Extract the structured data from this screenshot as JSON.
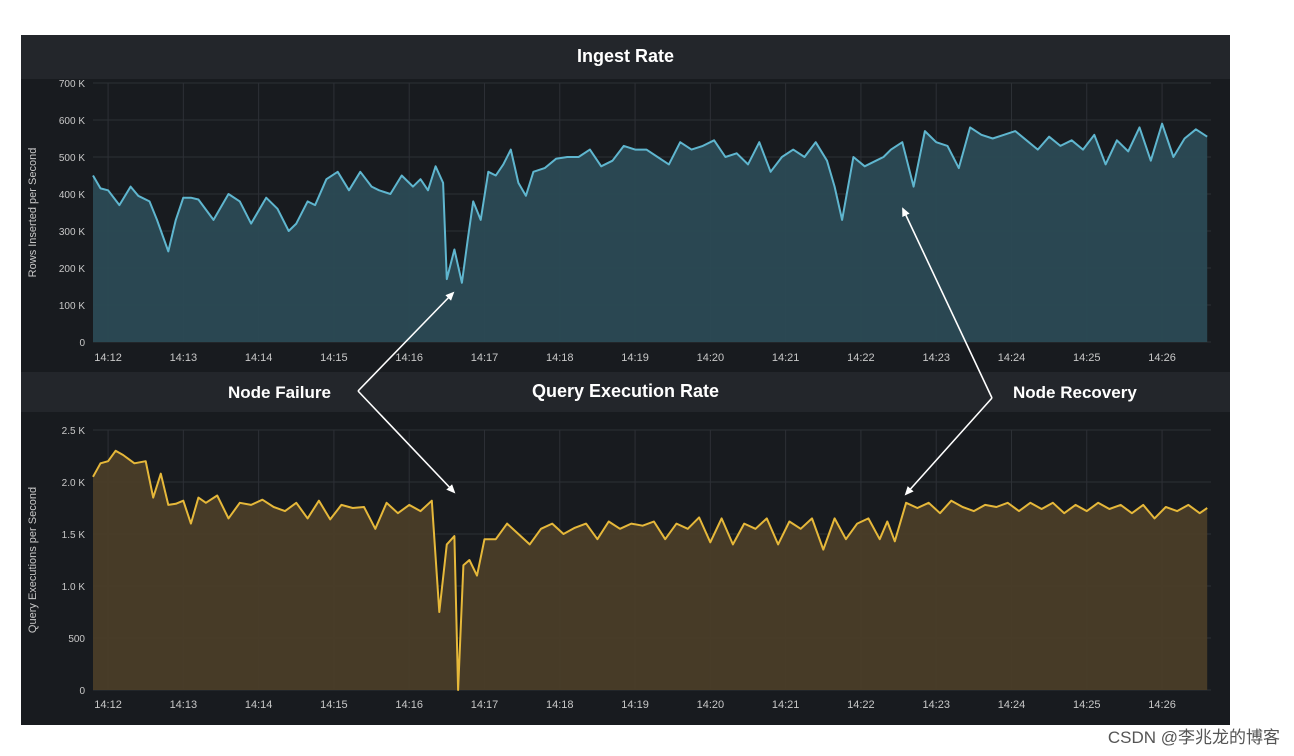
{
  "chart_data": [
    {
      "type": "area",
      "title": "Ingest Rate",
      "xlabel": "",
      "ylabel": "Rows Inserted per Second",
      "ylim": [
        0,
        700000
      ],
      "y_ticks": [
        0,
        100000,
        200000,
        300000,
        400000,
        500000,
        600000,
        700000
      ],
      "y_tick_labels": [
        "0",
        "100 K",
        "200 K",
        "300 K",
        "400 K",
        "500 K",
        "600 K",
        "700 K"
      ],
      "xlim": [
        11.8,
        26.65
      ],
      "x_ticks": [
        12,
        13,
        14,
        15,
        16,
        17,
        18,
        19,
        20,
        21,
        22,
        23,
        24,
        25,
        26
      ],
      "x_tick_labels": [
        "14:12",
        "14:13",
        "14:14",
        "14:15",
        "14:16",
        "14:17",
        "14:18",
        "14:19",
        "14:20",
        "14:21",
        "14:22",
        "14:23",
        "14:24",
        "14:25",
        "14:26"
      ],
      "line_color": "#5fb6cf",
      "fill_color": "#2b4a55",
      "x": [
        11.8,
        11.9,
        12.0,
        12.15,
        12.3,
        12.4,
        12.55,
        12.65,
        12.8,
        12.9,
        13.0,
        13.1,
        13.2,
        13.4,
        13.6,
        13.75,
        13.9,
        14.1,
        14.25,
        14.4,
        14.5,
        14.65,
        14.75,
        14.9,
        15.05,
        15.2,
        15.35,
        15.5,
        15.6,
        15.75,
        15.9,
        16.05,
        16.15,
        16.25,
        16.35,
        16.45,
        16.5,
        16.6,
        16.7,
        16.78,
        16.85,
        16.95,
        17.05,
        17.15,
        17.25,
        17.35,
        17.45,
        17.55,
        17.65,
        17.8,
        17.95,
        18.1,
        18.25,
        18.4,
        18.55,
        18.7,
        18.85,
        19.0,
        19.15,
        19.3,
        19.45,
        19.6,
        19.75,
        19.9,
        20.05,
        20.2,
        20.35,
        20.5,
        20.65,
        20.8,
        20.95,
        21.1,
        21.25,
        21.4,
        21.55,
        21.65,
        21.75,
        21.9,
        22.05,
        22.2,
        22.3,
        22.4,
        22.55,
        22.7,
        22.85,
        23.0,
        23.15,
        23.3,
        23.45,
        23.6,
        23.75,
        23.9,
        24.05,
        24.2,
        24.35,
        24.5,
        24.65,
        24.8,
        24.95,
        25.1,
        25.25,
        25.4,
        25.55,
        25.7,
        25.85,
        26.0,
        26.15,
        26.3,
        26.45,
        26.6
      ],
      "values": [
        450000,
        415000,
        410000,
        370000,
        420000,
        395000,
        380000,
        330000,
        245000,
        330000,
        390000,
        390000,
        385000,
        330000,
        400000,
        380000,
        320000,
        390000,
        360000,
        300000,
        320000,
        380000,
        370000,
        440000,
        460000,
        410000,
        460000,
        420000,
        410000,
        400000,
        450000,
        420000,
        440000,
        410000,
        475000,
        430000,
        170000,
        250000,
        160000,
        280000,
        380000,
        330000,
        460000,
        450000,
        480000,
        520000,
        430000,
        395000,
        460000,
        470000,
        495000,
        500000,
        500000,
        520000,
        475000,
        490000,
        530000,
        520000,
        520000,
        500000,
        480000,
        540000,
        520000,
        530000,
        545000,
        500000,
        510000,
        480000,
        540000,
        460000,
        500000,
        520000,
        500000,
        540000,
        490000,
        420000,
        330000,
        500000,
        475000,
        490000,
        500000,
        520000,
        540000,
        420000,
        570000,
        540000,
        530000,
        470000,
        580000,
        560000,
        550000,
        560000,
        570000,
        545000,
        520000,
        555000,
        530000,
        545000,
        520000,
        560000,
        480000,
        545000,
        515000,
        580000,
        490000,
        590000,
        500000,
        550000,
        575000,
        555000
      ]
    },
    {
      "type": "area",
      "title": "Query Execution Rate",
      "xlabel": "",
      "ylabel": "Query Executions per Second",
      "ylim": [
        0,
        2500
      ],
      "y_ticks": [
        0,
        500,
        1000,
        1500,
        2000,
        2500
      ],
      "y_tick_labels": [
        "0",
        "500",
        "1.0 K",
        "1.5 K",
        "2.0 K",
        "2.5 K"
      ],
      "xlim": [
        11.8,
        26.65
      ],
      "x_ticks": [
        12,
        13,
        14,
        15,
        16,
        17,
        18,
        19,
        20,
        21,
        22,
        23,
        24,
        25,
        26
      ],
      "x_tick_labels": [
        "14:12",
        "14:13",
        "14:14",
        "14:15",
        "14:16",
        "14:17",
        "14:18",
        "14:19",
        "14:20",
        "14:21",
        "14:22",
        "14:23",
        "14:24",
        "14:25",
        "14:26"
      ],
      "line_color": "#e6b83a",
      "fill_color": "#4a3d28",
      "x": [
        11.8,
        11.9,
        12.0,
        12.1,
        12.2,
        12.35,
        12.5,
        12.6,
        12.7,
        12.8,
        12.9,
        13.0,
        13.1,
        13.2,
        13.3,
        13.45,
        13.6,
        13.75,
        13.9,
        14.05,
        14.2,
        14.35,
        14.5,
        14.65,
        14.8,
        14.95,
        15.1,
        15.25,
        15.4,
        15.55,
        15.7,
        15.85,
        16.0,
        16.15,
        16.3,
        16.4,
        16.5,
        16.6,
        16.65,
        16.72,
        16.8,
        16.9,
        17.0,
        17.15,
        17.3,
        17.45,
        17.6,
        17.75,
        17.9,
        18.05,
        18.2,
        18.35,
        18.5,
        18.65,
        18.8,
        18.95,
        19.1,
        19.25,
        19.4,
        19.55,
        19.7,
        19.85,
        20.0,
        20.15,
        20.3,
        20.45,
        20.6,
        20.75,
        20.9,
        21.05,
        21.2,
        21.35,
        21.5,
        21.65,
        21.8,
        21.95,
        22.1,
        22.25,
        22.35,
        22.45,
        22.6,
        22.75,
        22.9,
        23.05,
        23.2,
        23.35,
        23.5,
        23.65,
        23.8,
        23.95,
        24.1,
        24.25,
        24.4,
        24.55,
        24.7,
        24.85,
        25.0,
        25.15,
        25.3,
        25.45,
        25.6,
        25.75,
        25.9,
        26.05,
        26.2,
        26.35,
        26.5,
        26.6
      ],
      "values": [
        2050,
        2180,
        2200,
        2300,
        2260,
        2180,
        2200,
        1850,
        2080,
        1780,
        1790,
        1820,
        1600,
        1850,
        1800,
        1870,
        1650,
        1800,
        1780,
        1830,
        1760,
        1720,
        1800,
        1650,
        1820,
        1640,
        1780,
        1750,
        1760,
        1550,
        1800,
        1700,
        1780,
        1720,
        1820,
        750,
        1400,
        1480,
        0,
        1200,
        1250,
        1100,
        1450,
        1450,
        1600,
        1500,
        1400,
        1550,
        1600,
        1500,
        1560,
        1600,
        1450,
        1620,
        1550,
        1600,
        1580,
        1620,
        1450,
        1600,
        1550,
        1660,
        1420,
        1650,
        1400,
        1600,
        1550,
        1650,
        1400,
        1620,
        1550,
        1650,
        1350,
        1650,
        1450,
        1600,
        1650,
        1450,
        1620,
        1430,
        1800,
        1750,
        1800,
        1700,
        1820,
        1760,
        1720,
        1780,
        1760,
        1800,
        1720,
        1800,
        1740,
        1800,
        1700,
        1780,
        1720,
        1800,
        1740,
        1780,
        1700,
        1780,
        1650,
        1760,
        1720,
        1780,
        1700,
        1750
      ]
    }
  ],
  "annotations": {
    "node_failure": "Node Failure",
    "node_recovery": "Node Recovery"
  },
  "watermark": "CSDN @李兆龙的博客"
}
